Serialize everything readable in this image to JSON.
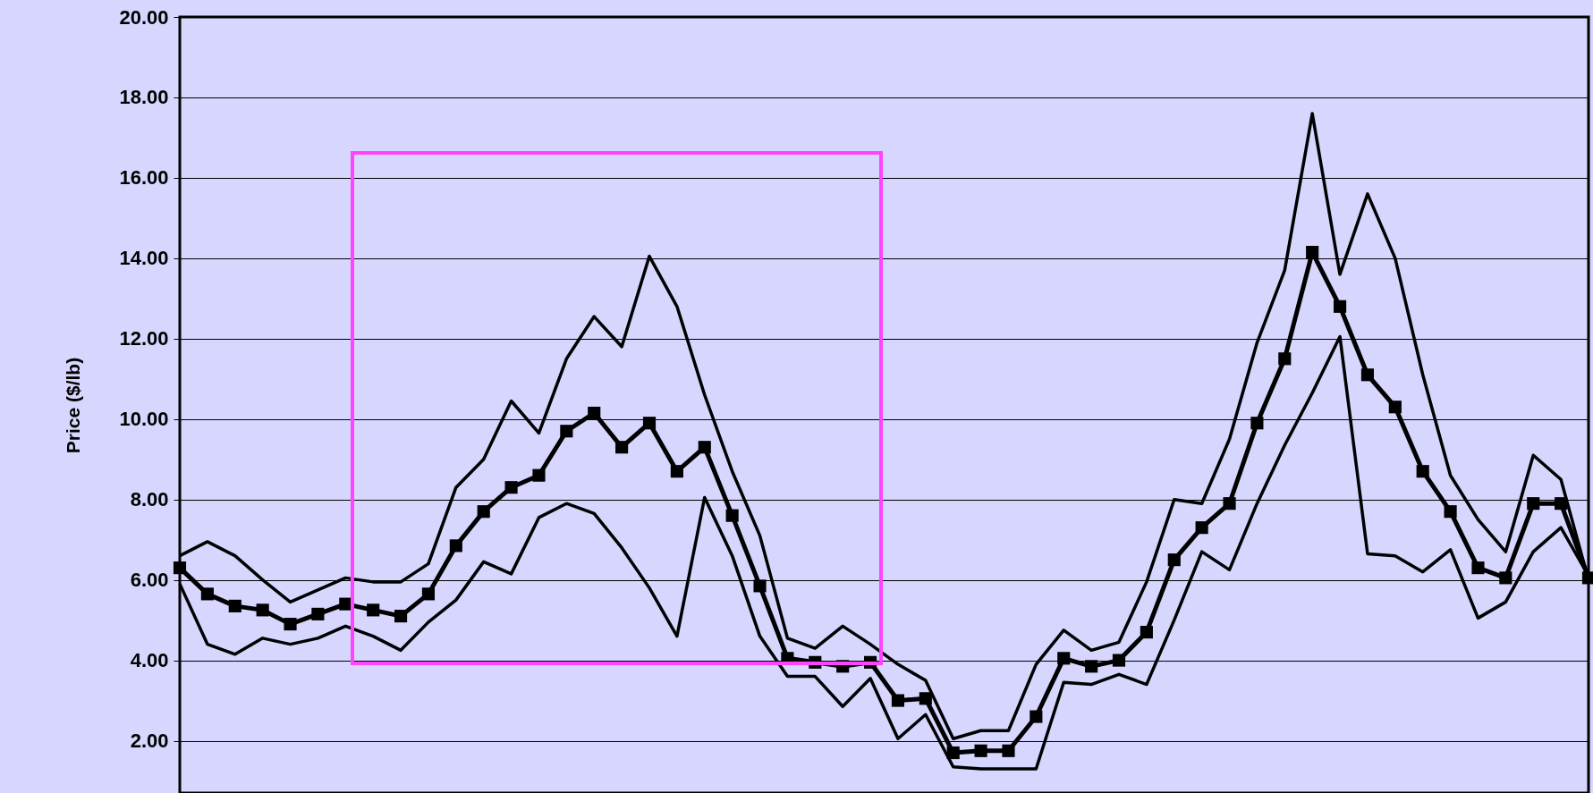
{
  "chart_data": {
    "type": "line",
    "ylabel": "Price ($/lb)",
    "categories": [
      null,
      null,
      null,
      null,
      null,
      null,
      null,
      null,
      null,
      null,
      null,
      null,
      null,
      null,
      null,
      null,
      null,
      null,
      null,
      null,
      null,
      null,
      null,
      null,
      null,
      null,
      null,
      null,
      null,
      null,
      null,
      null,
      null,
      null,
      null,
      null,
      null,
      null,
      null,
      null,
      null,
      null,
      null,
      null,
      null,
      null,
      null,
      null,
      null,
      null,
      null,
      null
    ],
    "series": [
      {
        "color": "#000000",
        "marker": "none",
        "values": [
          6.6,
          6.95,
          6.6,
          6.0,
          5.45,
          5.75,
          6.05,
          5.95,
          5.95,
          6.4,
          8.3,
          9.0,
          10.45,
          9.65,
          11.5,
          12.55,
          11.8,
          14.05,
          12.8,
          10.6,
          8.7,
          7.1,
          4.55,
          4.3,
          4.85,
          4.4,
          3.9,
          3.5,
          2.05,
          2.25,
          2.25,
          3.9,
          4.75,
          4.25,
          4.45,
          5.95,
          8.0,
          7.9,
          9.5,
          11.9,
          13.7,
          17.6,
          13.6,
          15.6,
          14.0,
          11.1,
          8.6,
          7.5,
          6.7,
          9.1,
          8.5,
          6.0
        ]
      },
      {
        "color": "#000000",
        "marker": "square",
        "values": [
          6.3,
          5.65,
          5.35,
          5.25,
          4.9,
          5.15,
          5.4,
          5.25,
          5.1,
          5.65,
          6.85,
          7.7,
          8.3,
          8.6,
          9.7,
          10.15,
          9.3,
          9.9,
          8.7,
          9.3,
          7.6,
          5.85,
          4.05,
          3.95,
          3.85,
          3.95,
          3.0,
          3.05,
          1.7,
          1.75,
          1.75,
          2.6,
          4.05,
          3.85,
          4.0,
          4.7,
          6.5,
          7.3,
          7.9,
          9.9,
          11.5,
          14.15,
          12.8,
          11.1,
          10.3,
          8.7,
          7.7,
          6.3,
          6.05,
          7.9,
          7.9,
          6.05
        ]
      },
      {
        "color": "#000000",
        "marker": "none",
        "values": [
          5.9,
          4.4,
          4.15,
          4.55,
          4.4,
          4.55,
          4.85,
          4.6,
          4.25,
          4.95,
          5.5,
          6.45,
          6.15,
          7.55,
          7.9,
          7.65,
          6.8,
          5.8,
          4.6,
          8.05,
          6.6,
          4.6,
          3.6,
          3.6,
          2.85,
          3.55,
          2.05,
          2.65,
          1.35,
          1.3,
          1.3,
          1.3,
          3.45,
          3.4,
          3.65,
          3.4,
          5.0,
          6.7,
          6.25,
          7.9,
          9.35,
          10.65,
          12.05,
          6.65,
          6.6,
          6.2,
          6.75,
          5.05,
          5.45,
          6.7,
          7.3,
          6.1
        ]
      }
    ],
    "ylim": [
      0.7,
      20
    ],
    "yticks": [
      {
        "value": 2,
        "label": "2.00"
      },
      {
        "value": 4,
        "label": "4.00"
      },
      {
        "value": 6,
        "label": "6.00"
      },
      {
        "value": 8,
        "label": "8.00"
      },
      {
        "value": 10,
        "label": "10.00"
      },
      {
        "value": 12,
        "label": "12.00"
      },
      {
        "value": 14,
        "label": "14.00"
      },
      {
        "value": 16,
        "label": "16.00"
      },
      {
        "value": 18,
        "label": "18.00"
      },
      {
        "value": 20,
        "label": "20.00"
      }
    ],
    "grid": "y",
    "tick_labels": "y",
    "line_style": "solid"
  }
}
